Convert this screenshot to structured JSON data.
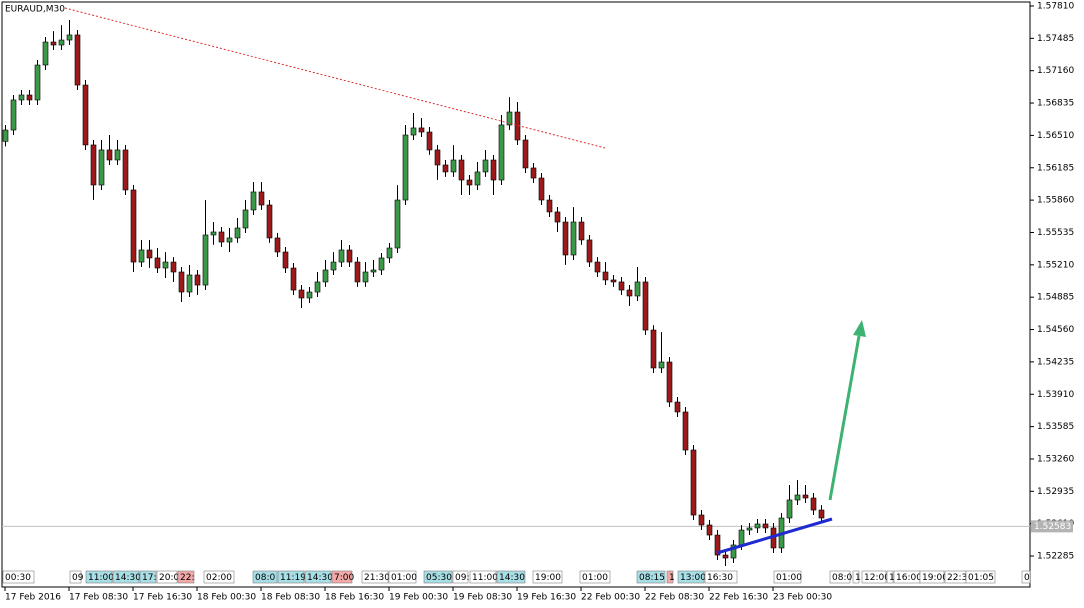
{
  "chart_data": {
    "type": "candlestick",
    "title": "EURAUD,M30",
    "ohlc": [
      [
        1.5645,
        1.56614,
        1.564,
        1.56564
      ],
      [
        1.56564,
        1.56916,
        1.56514,
        1.56866
      ],
      [
        1.56866,
        1.56966,
        1.56816,
        1.56916
      ],
      [
        1.56916,
        1.56966,
        1.56816,
        1.56866
      ],
      [
        1.56866,
        1.57267,
        1.56816,
        1.57217
      ],
      [
        1.57217,
        1.57498,
        1.57167,
        1.57448
      ],
      [
        1.57448,
        1.57558,
        1.57368,
        1.57418
      ],
      [
        1.57418,
        1.57618,
        1.57368,
        1.57468
      ],
      [
        1.57468,
        1.57669,
        1.57418,
        1.57519
      ],
      [
        1.57519,
        1.57569,
        1.56966,
        1.57016
      ],
      [
        1.57016,
        1.57066,
        1.56364,
        1.56414
      ],
      [
        1.56414,
        1.56464,
        1.55862,
        1.56012
      ],
      [
        1.56012,
        1.56464,
        1.55962,
        1.56364
      ],
      [
        1.56364,
        1.56514,
        1.56213,
        1.56263
      ],
      [
        1.56263,
        1.56464,
        1.56213,
        1.56364
      ],
      [
        1.56364,
        1.56414,
        1.55912,
        1.55962
      ],
      [
        1.55962,
        1.56012,
        1.55138,
        1.55238
      ],
      [
        1.55238,
        1.55459,
        1.55188,
        1.55359
      ],
      [
        1.55359,
        1.55459,
        1.55179,
        1.55279
      ],
      [
        1.55279,
        1.55379,
        1.55128,
        1.55178
      ],
      [
        1.55178,
        1.55338,
        1.55078,
        1.55238
      ],
      [
        1.55238,
        1.55288,
        1.55038,
        1.55138
      ],
      [
        1.55138,
        1.55188,
        1.54837,
        1.54937
      ],
      [
        1.54937,
        1.55208,
        1.54887,
        1.55108
      ],
      [
        1.55108,
        1.55158,
        1.54907,
        1.55007
      ],
      [
        1.55007,
        1.5586,
        1.54957,
        1.5551
      ],
      [
        1.5551,
        1.5564,
        1.5541,
        1.5554
      ],
      [
        1.5554,
        1.5559,
        1.55389,
        1.55439
      ],
      [
        1.55439,
        1.5558,
        1.55339,
        1.5548
      ],
      [
        1.5548,
        1.5568,
        1.5543,
        1.5558
      ],
      [
        1.5558,
        1.55861,
        1.5553,
        1.55761
      ],
      [
        1.55761,
        1.56042,
        1.55711,
        1.55942
      ],
      [
        1.55942,
        1.56042,
        1.55761,
        1.55811
      ],
      [
        1.55811,
        1.55861,
        1.5543,
        1.5548
      ],
      [
        1.5548,
        1.5553,
        1.55289,
        1.55339
      ],
      [
        1.55339,
        1.55389,
        1.55128,
        1.55178
      ],
      [
        1.55178,
        1.55228,
        1.54907,
        1.54957
      ],
      [
        1.54957,
        1.55007,
        1.54777,
        1.54877
      ],
      [
        1.54877,
        1.54987,
        1.54827,
        1.54937
      ],
      [
        1.54937,
        1.55138,
        1.54887,
        1.55038
      ],
      [
        1.55038,
        1.55258,
        1.54988,
        1.55158
      ],
      [
        1.55158,
        1.55338,
        1.55108,
        1.55238
      ],
      [
        1.55238,
        1.55459,
        1.55188,
        1.55359
      ],
      [
        1.55359,
        1.55409,
        1.55188,
        1.55238
      ],
      [
        1.55238,
        1.55288,
        1.54988,
        1.55038
      ],
      [
        1.55038,
        1.55238,
        1.54988,
        1.55138
      ],
      [
        1.55138,
        1.55258,
        1.55088,
        1.55158
      ],
      [
        1.55158,
        1.55329,
        1.55108,
        1.55279
      ],
      [
        1.55279,
        1.55429,
        1.55229,
        1.55379
      ],
      [
        1.55379,
        1.56011,
        1.55329,
        1.55861
      ],
      [
        1.55861,
        1.56614,
        1.55811,
        1.56514
      ],
      [
        1.56514,
        1.56735,
        1.56464,
        1.56585
      ],
      [
        1.56585,
        1.56685,
        1.56494,
        1.56544
      ],
      [
        1.56544,
        1.56594,
        1.56314,
        1.56364
      ],
      [
        1.56364,
        1.56414,
        1.56063,
        1.56213
      ],
      [
        1.56213,
        1.56263,
        1.56093,
        1.56143
      ],
      [
        1.56143,
        1.56413,
        1.56093,
        1.56263
      ],
      [
        1.56263,
        1.56313,
        1.55912,
        1.56062
      ],
      [
        1.56062,
        1.56112,
        1.55912,
        1.56012
      ],
      [
        1.56012,
        1.56243,
        1.55962,
        1.56143
      ],
      [
        1.56143,
        1.56363,
        1.56093,
        1.56263
      ],
      [
        1.56263,
        1.56313,
        1.55912,
        1.56062
      ],
      [
        1.56062,
        1.56715,
        1.56012,
        1.56615
      ],
      [
        1.56615,
        1.56895,
        1.56565,
        1.56745
      ],
      [
        1.56745,
        1.56845,
        1.56414,
        1.56464
      ],
      [
        1.56464,
        1.56514,
        1.56133,
        1.56183
      ],
      [
        1.56183,
        1.56233,
        1.56032,
        1.56082
      ],
      [
        1.56082,
        1.56132,
        1.55811,
        1.55861
      ],
      [
        1.55861,
        1.55911,
        1.55691,
        1.55741
      ],
      [
        1.55741,
        1.55791,
        1.5554,
        1.5564
      ],
      [
        1.5564,
        1.5569,
        1.55209,
        1.55309
      ],
      [
        1.55309,
        1.5579,
        1.55259,
        1.5564
      ],
      [
        1.5564,
        1.5569,
        1.5541,
        1.5546
      ],
      [
        1.5546,
        1.5551,
        1.55188,
        1.55238
      ],
      [
        1.55238,
        1.55288,
        1.55088,
        1.55138
      ],
      [
        1.55138,
        1.55238,
        1.55008,
        1.55058
      ],
      [
        1.55058,
        1.55108,
        1.54988,
        1.55038
      ],
      [
        1.55038,
        1.55088,
        1.54907,
        1.54957
      ],
      [
        1.54957,
        1.55007,
        1.54797,
        1.54897
      ],
      [
        1.54897,
        1.55188,
        1.54847,
        1.55038
      ],
      [
        1.55038,
        1.55088,
        1.54505,
        1.54555
      ],
      [
        1.54555,
        1.54605,
        1.54124,
        1.54174
      ],
      [
        1.54174,
        1.54534,
        1.54124,
        1.54234
      ],
      [
        1.54234,
        1.54284,
        1.53782,
        1.53832
      ],
      [
        1.53832,
        1.53882,
        1.53682,
        1.53732
      ],
      [
        1.53732,
        1.53782,
        1.533,
        1.5335
      ],
      [
        1.5335,
        1.534,
        1.52647,
        1.52697
      ],
      [
        1.52697,
        1.52747,
        1.52547,
        1.52597
      ],
      [
        1.52597,
        1.52647,
        1.52446,
        1.52496
      ],
      [
        1.52496,
        1.52546,
        1.52245,
        1.52295
      ],
      [
        1.52295,
        1.52345,
        1.52185,
        1.52265
      ],
      [
        1.52265,
        1.52446,
        1.52215,
        1.52396
      ],
      [
        1.52396,
        1.52596,
        1.52346,
        1.52546
      ],
      [
        1.52546,
        1.52617,
        1.52496,
        1.52567
      ],
      [
        1.52567,
        1.52657,
        1.52517,
        1.52607
      ],
      [
        1.52607,
        1.52657,
        1.52517,
        1.52567
      ],
      [
        1.52567,
        1.52617,
        1.52316,
        1.52366
      ],
      [
        1.52366,
        1.52717,
        1.52316,
        1.52667
      ],
      [
        1.52667,
        1.52998,
        1.52617,
        1.52848
      ],
      [
        1.52848,
        1.53048,
        1.52798,
        1.52898
      ],
      [
        1.52898,
        1.52998,
        1.52818,
        1.52868
      ],
      [
        1.52868,
        1.52918,
        1.52697,
        1.52747
      ],
      [
        1.52747,
        1.52797,
        1.52617,
        1.52667
      ]
    ],
    "up_color": "#3a9a48",
    "down_color": "#9e1a1a",
    "xlim": [
      0,
      128
    ],
    "xticks": [
      {
        "value": 0,
        "label": "17 Feb 2016"
      },
      {
        "value": 8,
        "label": "17 Feb 08:30"
      },
      {
        "value": 16,
        "label": "17 Feb 16:30"
      },
      {
        "value": 24,
        "label": "18 Feb 00:30"
      },
      {
        "value": 32,
        "label": "18 Feb 08:30"
      },
      {
        "value": 40,
        "label": "18 Feb 16:30"
      },
      {
        "value": 48,
        "label": "19 Feb 00:30"
      },
      {
        "value": 56,
        "label": "19 Feb 08:30"
      },
      {
        "value": 64,
        "label": "19 Feb 16:30"
      },
      {
        "value": 72,
        "label": "22 Feb 00:30"
      },
      {
        "value": 80,
        "label": "22 Feb 08:30"
      },
      {
        "value": 88,
        "label": "22 Feb 16:30"
      },
      {
        "value": 96,
        "label": "23 Feb 00:30"
      }
    ],
    "ylim": [
      1.51974,
      1.5785
    ],
    "yticks": [
      {
        "value": 1.5781,
        "label": "1.57810"
      },
      1.57485,
      {
        "value": 1.5716,
        "label": "1.57160"
      },
      1.56835,
      {
        "value": 1.5651,
        "label": "1.56510"
      },
      1.56185,
      {
        "value": 1.5586,
        "label": "1.55860"
      },
      1.55535,
      {
        "value": 1.5521,
        "label": "1.55210"
      },
      1.54885,
      {
        "value": 1.5456,
        "label": "1.54560"
      },
      1.54235,
      {
        "value": 1.5391,
        "label": "1.53910"
      },
      1.53585,
      {
        "value": 1.5326,
        "label": "1.53260"
      },
      1.52935,
      {
        "value": 1.5261,
        "label": "1.52610"
      },
      1.52285
    ],
    "current_price": 1.52583,
    "markers": [
      "00:30",
      "09",
      "11:00",
      "14:30",
      "17:3",
      "20:0",
      "22:",
      "02:00",
      "08:0",
      "11:19",
      "14:30",
      "7:00",
      "21:30",
      "01:00",
      "05:30",
      "09:",
      "11:00",
      "14:30",
      "19:00",
      "01:00",
      "08:15",
      "1",
      "13:00",
      "16:30",
      "01:00",
      "08:0",
      "1",
      "12:00",
      "1",
      "16:00",
      "19:00",
      "22:3",
      "01:05",
      "0"
    ]
  }
}
